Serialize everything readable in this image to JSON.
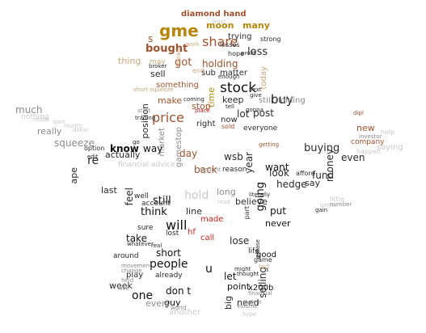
{
  "palette": {
    "black": "#111111",
    "dark": "#2a2a2a",
    "gray": "#8a8a8a",
    "lightgray": "#c9c9c9",
    "gold": "#b8860b",
    "tan": "#c8a878",
    "brown": "#a0522d",
    "red": "#cc2222"
  },
  "words": [
    {
      "text": "gme",
      "color": "gold"
    },
    {
      "text": "diamond hand",
      "color": "brown"
    },
    {
      "text": "moon",
      "color": "gold"
    },
    {
      "text": "many",
      "color": "gold"
    },
    {
      "text": "share",
      "color": "brown"
    },
    {
      "text": "s",
      "color": "brown"
    },
    {
      "text": "bought",
      "color": "brown"
    },
    {
      "text": "trying",
      "color": "dark"
    },
    {
      "text": "loss",
      "color": "dark"
    },
    {
      "text": "losses",
      "color": "dark"
    },
    {
      "text": "strong",
      "color": "dark"
    },
    {
      "text": "thing",
      "color": "tan"
    },
    {
      "text": "got",
      "color": "brown"
    },
    {
      "text": "holding",
      "color": "brown"
    },
    {
      "text": "sell",
      "color": "dark"
    },
    {
      "text": "sub",
      "color": "dark"
    },
    {
      "text": "matter",
      "color": "dark"
    },
    {
      "text": "today",
      "color": "tan"
    },
    {
      "text": "stock",
      "color": "black"
    },
    {
      "text": "something",
      "color": "brown"
    },
    {
      "text": "keep",
      "color": "dark"
    },
    {
      "text": "buy",
      "color": "black"
    },
    {
      "text": "make",
      "color": "brown"
    },
    {
      "text": "time",
      "color": "gold"
    },
    {
      "text": "price",
      "color": "brown"
    },
    {
      "text": "lot",
      "color": "dark"
    },
    {
      "text": "post",
      "color": "dark"
    },
    {
      "text": "position",
      "color": "dark"
    },
    {
      "text": "stop",
      "color": "brown"
    },
    {
      "text": "much",
      "color": "gray"
    },
    {
      "text": "nothing",
      "color": "lightgray"
    },
    {
      "text": "really",
      "color": "gray"
    },
    {
      "text": "squeeze",
      "color": "gray"
    },
    {
      "text": "market",
      "color": "gray"
    },
    {
      "text": "gamestop",
      "color": "gray"
    },
    {
      "text": "right",
      "color": "dark"
    },
    {
      "text": "now",
      "color": "dark"
    },
    {
      "text": "still holding",
      "color": "gray"
    },
    {
      "text": "everyone",
      "color": "dark"
    },
    {
      "text": "new",
      "color": "brown"
    },
    {
      "text": "company",
      "color": "brown"
    },
    {
      "text": "ape",
      "color": "dark"
    },
    {
      "text": "re",
      "color": "dark"
    },
    {
      "text": "actually",
      "color": "dark"
    },
    {
      "text": "know",
      "color": "black"
    },
    {
      "text": "way",
      "color": "black"
    },
    {
      "text": "day",
      "color": "brown"
    },
    {
      "text": "wsb",
      "color": "dark"
    },
    {
      "text": "year",
      "color": "dark"
    },
    {
      "text": "buying",
      "color": "dark"
    },
    {
      "text": "even",
      "color": "dark"
    },
    {
      "text": "back",
      "color": "brown"
    },
    {
      "text": "reason",
      "color": "dark"
    },
    {
      "text": "look",
      "color": "dark"
    },
    {
      "text": "hedge",
      "color": "dark"
    },
    {
      "text": "fund",
      "color": "dark"
    },
    {
      "text": "money",
      "color": "dark"
    },
    {
      "text": "say",
      "color": "dark"
    },
    {
      "text": "want",
      "color": "black"
    },
    {
      "text": "financial advice",
      "color": "lightgray"
    },
    {
      "text": "last",
      "color": "dark"
    },
    {
      "text": "hold",
      "color": "lightgray"
    },
    {
      "text": "long",
      "color": "gray"
    },
    {
      "text": "believe",
      "color": "dark"
    },
    {
      "text": "still",
      "color": "black"
    },
    {
      "text": "think",
      "color": "black"
    },
    {
      "text": "line",
      "color": "dark"
    },
    {
      "text": "feel",
      "color": "dark"
    },
    {
      "text": "going",
      "color": "black"
    },
    {
      "text": "put",
      "color": "black"
    },
    {
      "text": "never",
      "color": "black"
    },
    {
      "text": "will",
      "color": "black"
    },
    {
      "text": "made",
      "color": "red"
    },
    {
      "text": "call",
      "color": "red"
    },
    {
      "text": "hf",
      "color": "red"
    },
    {
      "text": "take",
      "color": "black"
    },
    {
      "text": "short",
      "color": "black"
    },
    {
      "text": "lose",
      "color": "dark"
    },
    {
      "text": "life",
      "color": "dark"
    },
    {
      "text": "good",
      "color": "black"
    },
    {
      "text": "people",
      "color": "black"
    },
    {
      "text": "u",
      "color": "black"
    },
    {
      "text": "let",
      "color": "black"
    },
    {
      "text": "point",
      "color": "black"
    },
    {
      "text": "x200b",
      "color": "black"
    },
    {
      "text": "week",
      "color": "dark"
    },
    {
      "text": "one",
      "color": "black"
    },
    {
      "text": "don t",
      "color": "black"
    },
    {
      "text": "guy",
      "color": "black"
    },
    {
      "text": "selling",
      "color": "dark"
    },
    {
      "text": "every",
      "color": "gray"
    },
    {
      "text": "big",
      "color": "dark"
    },
    {
      "text": "need",
      "color": "dark"
    },
    {
      "text": "another",
      "color": "lightgray"
    },
    {
      "text": "play",
      "color": "dark"
    },
    {
      "text": "already",
      "color": "dark"
    },
    {
      "text": "around",
      "color": "dark"
    },
    {
      "text": "game",
      "color": "dark"
    },
    {
      "text": "afford",
      "color": "dark"
    },
    {
      "text": "happen",
      "color": "lightgray"
    },
    {
      "text": "help",
      "color": "lightgray"
    },
    {
      "text": "little",
      "color": "lightgray"
    },
    {
      "text": "account",
      "color": "dark"
    },
    {
      "text": "well",
      "color": "dark"
    },
    {
      "text": "lost",
      "color": "dark"
    },
    {
      "text": "sure",
      "color": "dark"
    },
    {
      "text": "mean",
      "color": "tan"
    },
    {
      "text": "may",
      "color": "tan"
    },
    {
      "text": "end",
      "color": "tan"
    },
    {
      "text": "work",
      "color": "tan"
    },
    {
      "text": "hope",
      "color": "dark"
    },
    {
      "text": "profit",
      "color": "dark"
    },
    {
      "text": "broker",
      "color": "dark"
    },
    {
      "text": "short squeeze",
      "color": "tan"
    },
    {
      "text": "coming",
      "color": "dark"
    },
    {
      "text": "tell",
      "color": "dark"
    },
    {
      "text": "gonna",
      "color": "dark"
    },
    {
      "text": "give",
      "color": "dark"
    },
    {
      "text": "getting",
      "color": "brown"
    },
    {
      "text": "sold",
      "color": "brown"
    },
    {
      "text": "go",
      "color": "black"
    },
    {
      "text": "trading",
      "color": "dark"
    },
    {
      "text": "edit",
      "color": "dark"
    },
    {
      "text": "option",
      "color": "dark"
    },
    {
      "text": "real",
      "color": "dark"
    },
    {
      "text": "literally",
      "color": "dark"
    },
    {
      "text": "part",
      "color": "dark"
    },
    {
      "text": "please",
      "color": "dark"
    },
    {
      "text": "thought",
      "color": "dark"
    },
    {
      "text": "might",
      "color": "dark"
    },
    {
      "text": "whatever",
      "color": "dark"
    },
    {
      "text": "movement",
      "color": "gray"
    },
    {
      "text": "change",
      "color": "gray"
    },
    {
      "text": "held",
      "color": "gray"
    },
    {
      "text": "love",
      "color": "gray"
    },
    {
      "text": "world",
      "color": "gray"
    },
    {
      "text": "hype",
      "color": "lightgray"
    },
    {
      "text": "better",
      "color": "lightgray"
    },
    {
      "text": "saying",
      "color": "lightgray"
    },
    {
      "text": "dipl",
      "color": "brown"
    },
    {
      "text": "dont",
      "color": "lightgray"
    },
    {
      "text": "month",
      "color": "lightgray"
    },
    {
      "text": "dollar",
      "color": "lightgray"
    },
    {
      "text": "reddit",
      "color": "lightgray"
    },
    {
      "text": "read",
      "color": "lightgray"
    },
    {
      "text": "place",
      "color": "red"
    },
    {
      "text": "enough",
      "color": "dark"
    },
    {
      "text": "least",
      "color": "lightgray"
    },
    {
      "text": "start",
      "color": "gray"
    },
    {
      "text": "amount",
      "color": "gray"
    },
    {
      "text": "number",
      "color": "gray"
    },
    {
      "text": "volume",
      "color": "gray"
    },
    {
      "text": "financial",
      "color": "gray"
    },
    {
      "text": "melvin",
      "color": "gray"
    },
    {
      "text": "investor",
      "color": "gray"
    },
    {
      "text": "fact",
      "color": "tan"
    },
    {
      "text": "next",
      "color": "dark"
    },
    {
      "text": "gain",
      "color": "dark"
    },
    {
      "text": "pay",
      "color": "dark"
    }
  ]
}
